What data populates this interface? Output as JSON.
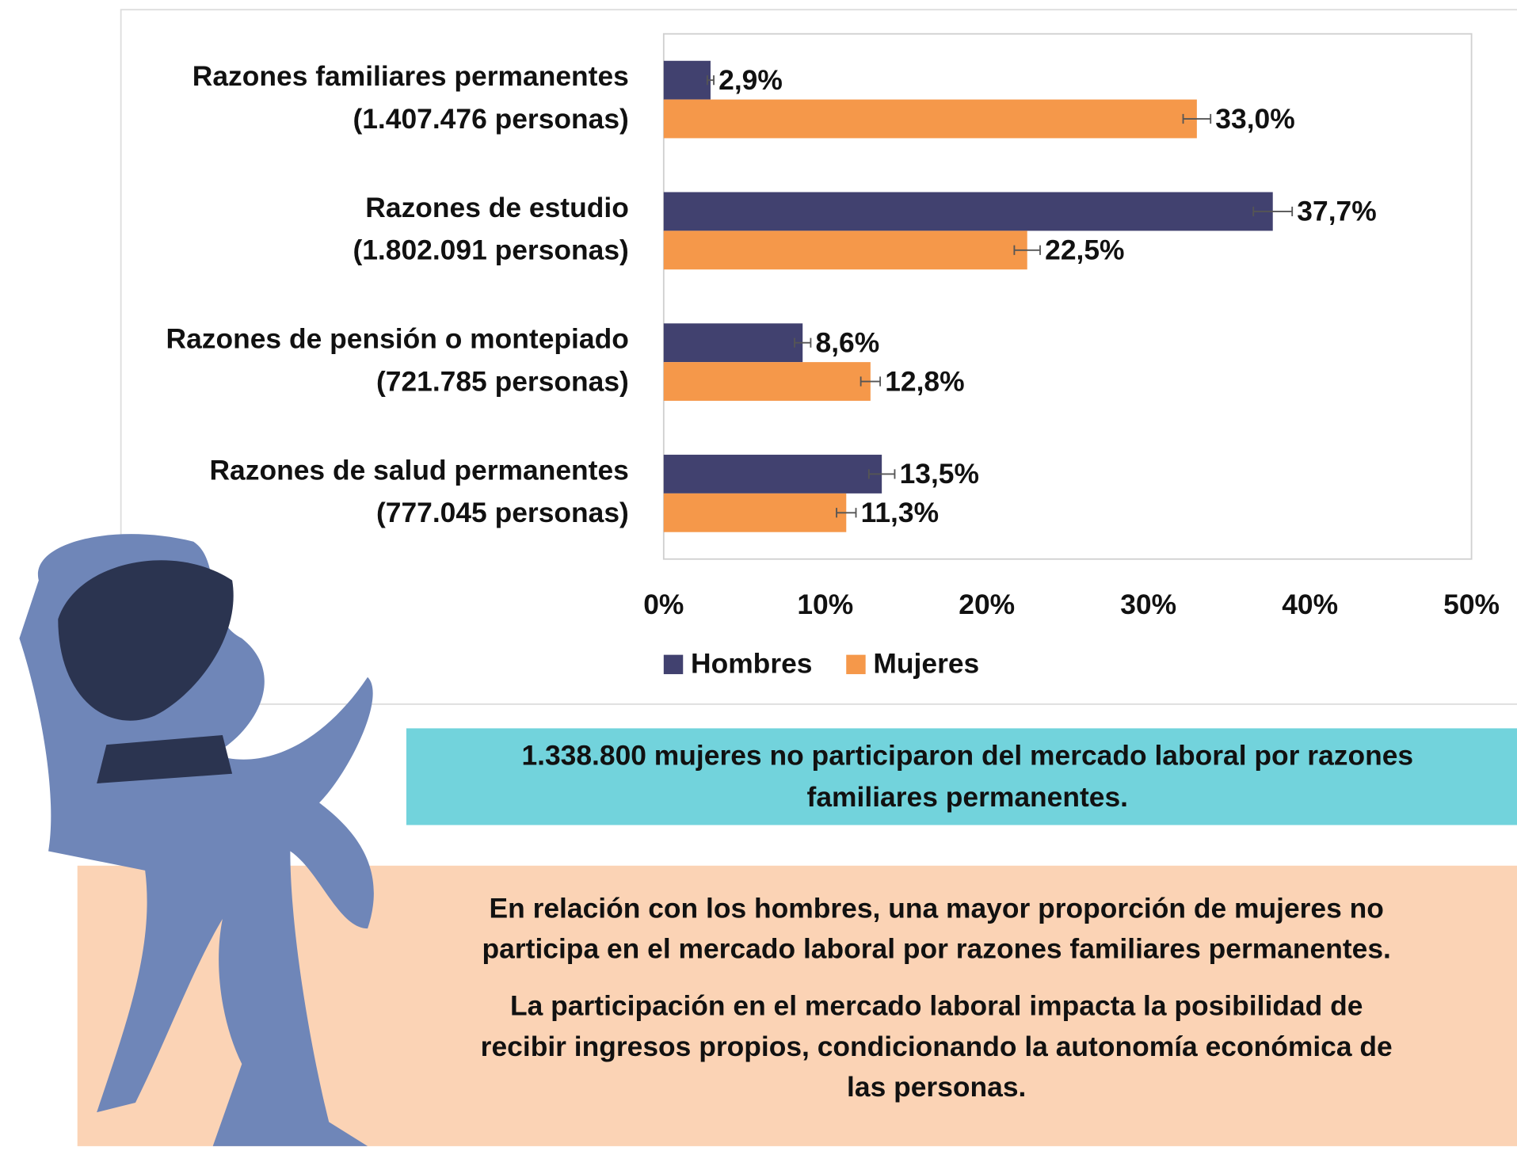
{
  "chart_data": {
    "type": "bar",
    "orientation": "horizontal",
    "categories": [
      [
        "Razones familiares permanentes",
        "(1.407.476 personas)"
      ],
      [
        "Razones de estudio",
        "(1.802.091 personas)"
      ],
      [
        "Razones de pensión o montepiado",
        "(721.785 personas)"
      ],
      [
        "Razones de salud permanentes",
        "(777.045 personas)"
      ]
    ],
    "series": [
      {
        "name": "Hombres",
        "color": "#41416f",
        "values": [
          2.9,
          37.7,
          8.6,
          13.5
        ],
        "errors": [
          0.2,
          1.2,
          0.5,
          0.8
        ],
        "value_labels": [
          "2,9%",
          "37,7%",
          "8,6%",
          "13,5%"
        ]
      },
      {
        "name": "Mujeres",
        "color": "#f5984a",
        "values": [
          33.0,
          22.5,
          12.8,
          11.3
        ],
        "errors": [
          0.85,
          0.8,
          0.6,
          0.6
        ],
        "value_labels": [
          "33,0%",
          "22,5%",
          "12,8%",
          "11,3%"
        ]
      }
    ],
    "xlim": [
      0,
      50
    ],
    "xticks": [
      {
        "value": 0,
        "label": "0%"
      },
      {
        "value": 10,
        "label": "10%"
      },
      {
        "value": 20,
        "label": "20%"
      },
      {
        "value": 30,
        "label": "30%"
      },
      {
        "value": 40,
        "label": "40%"
      },
      {
        "value": 50,
        "label": "50%"
      }
    ],
    "grid": false,
    "legend": "bottom"
  },
  "note1": [
    "1.338.800 mujeres no participaron del mercado laboral por razones",
    "familiares permanentes."
  ],
  "note2": [
    "En relación con los hombres, una mayor proporción de mujeres no",
    "participa en el mercado laboral por razones familiares permanentes."
  ],
  "note3": [
    "La participación en el mercado laboral impacta la posibilidad de",
    "recibir ingresos propios, condicionando la autonomía económica de",
    "las personas."
  ]
}
